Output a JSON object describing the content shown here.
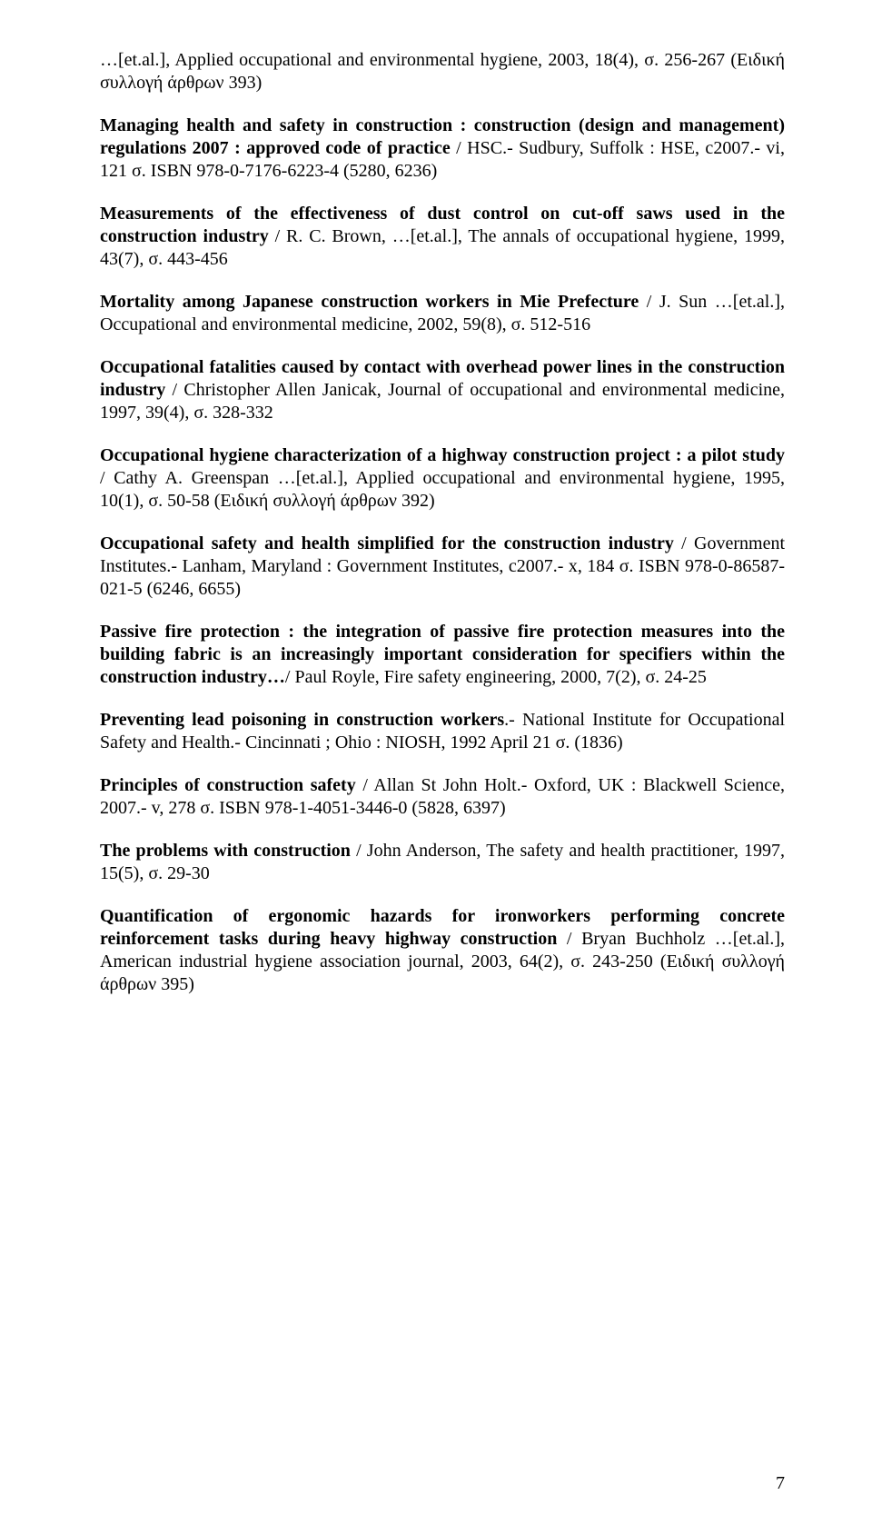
{
  "entries": [
    {
      "runs": [
        {
          "t": "…[et.al.], Applied occupational and environmental hygiene, 2003, 18(4), σ. 256-267  (Ειδική συλλογή άρθρων 393)",
          "b": false
        }
      ]
    },
    {
      "runs": [
        {
          "t": "Managing health and safety in construction : construction (design and management) regulations 2007 : approved code of practice",
          "b": true
        },
        {
          "t": " / HSC.- Sudbury, Suffolk : HSE, c2007.- vi, 121 σ.   ISBN 978-0-7176-6223-4   (5280, 6236)",
          "b": false
        }
      ]
    },
    {
      "runs": [
        {
          "t": "Measurements of the effectiveness of dust control on cut-off saws used in the construction industry",
          "b": true
        },
        {
          "t": " / R. C. Brown, …[et.al.], The annals of occupational hygiene,  1999, 43(7), σ. 443-456",
          "b": false
        }
      ]
    },
    {
      "runs": [
        {
          "t": "Mortality among Japanese construction workers in Mie Prefecture",
          "b": true
        },
        {
          "t": " / J. Sun …[et.al.], Occupational and environmental medicine, 2002, 59(8), σ. 512-516",
          "b": false
        }
      ]
    },
    {
      "runs": [
        {
          "t": "Occupational fatalities caused by contact with overhead power lines in the construction industry",
          "b": true
        },
        {
          "t": " / Christopher  Allen Janicak, Journal of occupational and environmental medicine, 1997,  39(4), σ. 328-332",
          "b": false
        }
      ]
    },
    {
      "runs": [
        {
          "t": "Occupational hygiene characterization of a highway construction project : a pilot study",
          "b": true
        },
        {
          "t": " / Cathy A. Greenspan …[et.al.], Applied occupational and environmental hygiene, 1995, 10(1), σ. 50-58  (Ειδική συλλογή άρθρων 392)",
          "b": false
        }
      ]
    },
    {
      "runs": [
        {
          "t": "Occupational safety and health simplified for the construction industry",
          "b": true
        },
        {
          "t": " / Government Institutes.- Lanham, Maryland : Government Institutes, c2007.- x, 184 σ.   ISBN 978-0-86587-021-5   (6246, 6655)",
          "b": false
        }
      ]
    },
    {
      "runs": [
        {
          "t": "Passive fire protection : the integration of passive fire protection measures into the building fabric is an increasingly important consideration for specifiers within the construction industry…",
          "b": true
        },
        {
          "t": "/ Paul Royle, Fire safety engineering, 2000, 7(2), σ. 24-25",
          "b": false
        }
      ]
    },
    {
      "runs": [
        {
          "t": "Preventing lead poisoning in construction workers",
          "b": true
        },
        {
          "t": ".- National Institute for Occupational Safety and Health.- Cincinnati ; Ohio : NIOSH, 1992 April  21 σ.  (1836)",
          "b": false
        }
      ]
    },
    {
      "runs": [
        {
          "t": "Principles of construction safety",
          "b": true
        },
        {
          "t": " / Allan St John Holt.- Oxford, UK : Blackwell Science, 2007.- v, 278 σ.   ISBN 978-1-4051-3446-0   (5828, 6397)",
          "b": false
        }
      ]
    },
    {
      "runs": [
        {
          "t": "The problems with construction",
          "b": true
        },
        {
          "t": " / John Anderson, The safety and health practitioner, 1997, 15(5), σ. 29-30",
          "b": false
        }
      ]
    },
    {
      "runs": [
        {
          "t": "Quantification of ergonomic hazards for ironworkers performing concrete reinforcement tasks during heavy highway construction",
          "b": true
        },
        {
          "t": " / Bryan Buchholz …[et.al.],  American industrial hygiene association journal, 2003, 64(2), σ. 243-250   (Ειδική συλλογή άρθρων 395)",
          "b": false
        }
      ]
    }
  ],
  "page_number": "7"
}
